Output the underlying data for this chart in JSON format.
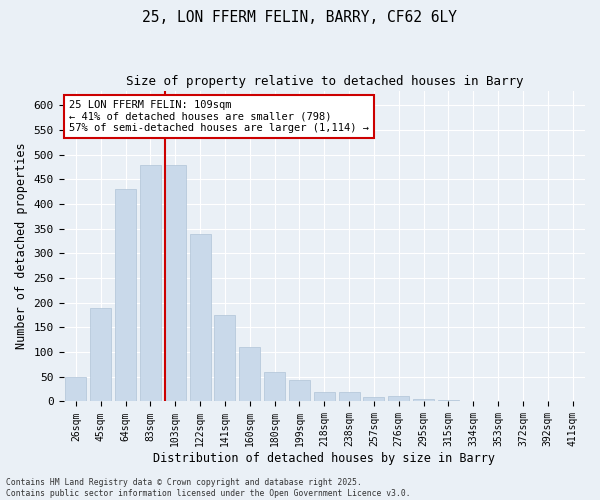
{
  "title_line1": "25, LON FFERM FELIN, BARRY, CF62 6LY",
  "title_line2": "Size of property relative to detached houses in Barry",
  "xlabel": "Distribution of detached houses by size in Barry",
  "ylabel": "Number of detached properties",
  "bar_color": "#c9d9ea",
  "bar_edge_color": "#b0c4d8",
  "background_color": "#eaf0f6",
  "grid_color": "#ffffff",
  "categories": [
    "26sqm",
    "45sqm",
    "64sqm",
    "83sqm",
    "103sqm",
    "122sqm",
    "141sqm",
    "160sqm",
    "180sqm",
    "199sqm",
    "218sqm",
    "238sqm",
    "257sqm",
    "276sqm",
    "295sqm",
    "315sqm",
    "334sqm",
    "353sqm",
    "372sqm",
    "392sqm",
    "411sqm"
  ],
  "values": [
    50,
    190,
    430,
    480,
    480,
    340,
    175,
    110,
    60,
    43,
    20,
    20,
    10,
    11,
    5,
    2,
    1,
    1,
    0,
    0,
    0
  ],
  "ylim": [
    0,
    630
  ],
  "yticks": [
    0,
    50,
    100,
    150,
    200,
    250,
    300,
    350,
    400,
    450,
    500,
    550,
    600
  ],
  "property_bar_index": 4,
  "annotation_text": "25 LON FFERM FELIN: 109sqm\n← 41% of detached houses are smaller (798)\n57% of semi-detached houses are larger (1,114) →",
  "annotation_box_color": "#ffffff",
  "annotation_box_edge": "#cc0000",
  "vline_color": "#cc0000",
  "footnote": "Contains HM Land Registry data © Crown copyright and database right 2025.\nContains public sector information licensed under the Open Government Licence v3.0."
}
